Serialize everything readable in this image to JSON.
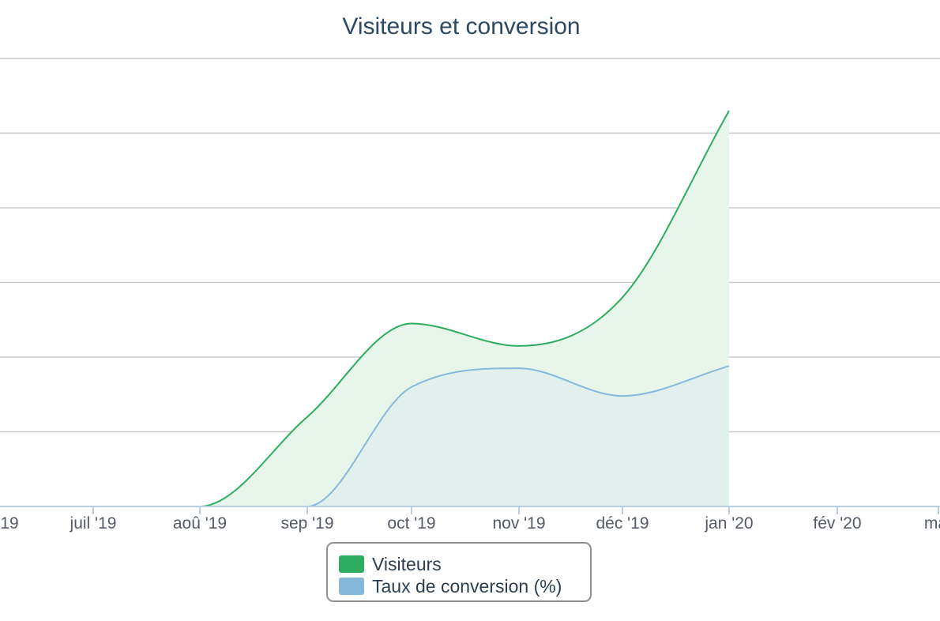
{
  "chart_data": {
    "type": "area",
    "title": "Visiteurs et conversion",
    "xlabel": "",
    "ylabel": "",
    "x_tick_labels": [
      "19",
      "juil '19",
      "aoû '19",
      "sep '19",
      "oct '19",
      "nov '19",
      "déc '19",
      "jan '20",
      "fév '20",
      "mar"
    ],
    "x": [
      "2019-06",
      "2019-07",
      "2019-08",
      "2019-09",
      "2019-10",
      "2019-11",
      "2019-12",
      "2020-01"
    ],
    "ylim": [
      0,
      6
    ],
    "grid": true,
    "legend_position": "bottom-center",
    "series": [
      {
        "name": "Visiteurs",
        "color": "#2eac60",
        "fill": "#e7f5ea",
        "values": [
          0,
          0,
          0,
          1.2,
          2.45,
          2.15,
          2.8,
          5.3
        ]
      },
      {
        "name": "Taux de conversion (%)",
        "color": "#86b8dc",
        "fill": "#dfefec",
        "values": [
          0,
          0,
          0,
          0,
          1.6,
          1.85,
          1.48,
          1.88
        ]
      }
    ]
  }
}
